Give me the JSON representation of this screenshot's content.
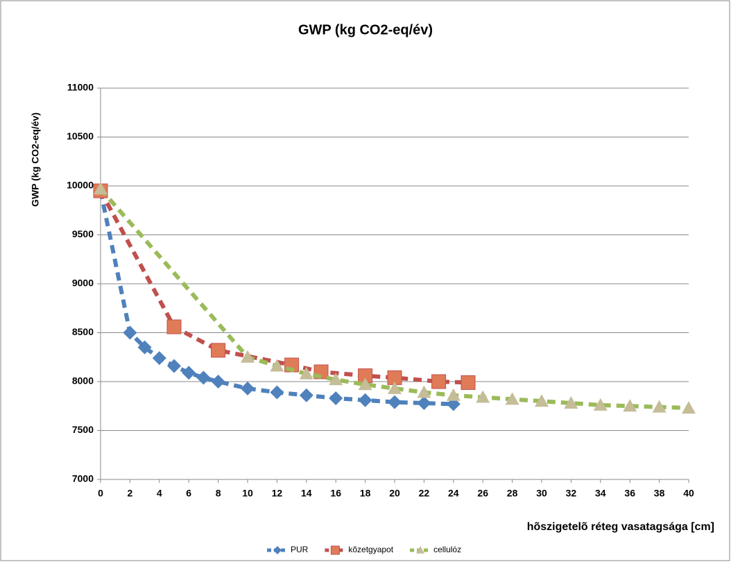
{
  "chart_data": {
    "type": "line",
    "title": "GWP (kg CO2-eq/év)",
    "x_label": "hõszigetelõ réteg vasatagsága [cm]",
    "y_label": "GWP (kg CO2-eq/év)",
    "xlim": [
      0,
      40
    ],
    "xticks": [
      0,
      2,
      4,
      6,
      8,
      10,
      12,
      14,
      16,
      18,
      20,
      22,
      24,
      26,
      28,
      30,
      32,
      34,
      36,
      38,
      40
    ],
    "ylim": [
      7000,
      11000
    ],
    "yticks": [
      7000,
      7500,
      8000,
      8500,
      9000,
      9500,
      10000,
      10500,
      11000
    ],
    "grid": true,
    "legend": "bottom",
    "series": [
      {
        "name": "PUR",
        "color": "#4f81bd",
        "marker": "diamond",
        "marker_color": "#4f81bd",
        "x": [
          0,
          2,
          3,
          4,
          5,
          6,
          7,
          8,
          10,
          12,
          14,
          16,
          18,
          20,
          22,
          24
        ],
        "values": [
          9950,
          8500,
          8350,
          8240,
          8160,
          8090,
          8040,
          8000,
          7930,
          7890,
          7860,
          7830,
          7810,
          7790,
          7780,
          7770
        ]
      },
      {
        "name": "kõzetgyapot",
        "color": "#c0504d",
        "marker": "square",
        "marker_color": "#e07b58",
        "x": [
          0,
          5,
          8,
          13,
          15,
          18,
          20,
          23,
          25
        ],
        "values": [
          9950,
          8560,
          8320,
          8170,
          8100,
          8060,
          8040,
          8000,
          7990
        ]
      },
      {
        "name": "cellulóz",
        "color": "#9bbb59",
        "marker": "triangle",
        "marker_color": "#c4bd97",
        "x": [
          0,
          10,
          12,
          14,
          16,
          18,
          20,
          22,
          24,
          26,
          28,
          30,
          32,
          34,
          36,
          38,
          40
        ],
        "values": [
          9970,
          8250,
          8160,
          8080,
          8020,
          7970,
          7930,
          7890,
          7860,
          7840,
          7820,
          7800,
          7780,
          7760,
          7750,
          7740,
          7730
        ]
      }
    ]
  }
}
